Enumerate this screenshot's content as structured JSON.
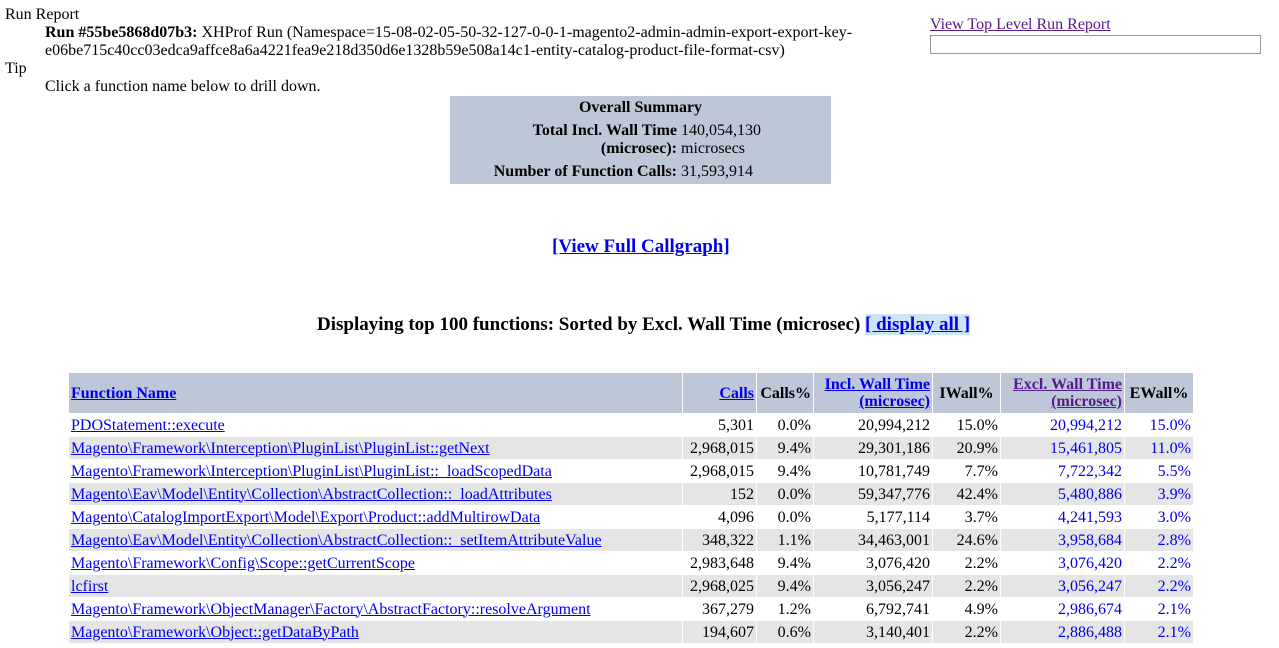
{
  "report": {
    "title": "Run Report",
    "run_label": "Run #55be5868d07b3:",
    "run_line1": "XHProf Run (Namespace=15-08-02-05-50-32-127-0-0-1-magento2-admin-admin-export-export-key-",
    "run_line2": "e06be715c40cc03edca9affce8a6a4221fea9e218d350d6e1328b59e508a14c1-entity-catalog-product-file-format-csv)",
    "tip_label": "Tip",
    "tip_text": "Click a function name below to drill down.",
    "top_level_link": "View Top Level Run Report"
  },
  "summary": {
    "heading": "Overall Summary",
    "wall_label_1": "Total Incl. Wall Time",
    "wall_label_2": "(microsec):",
    "wall_value": "140,054,130",
    "wall_unit": "microsecs",
    "calls_label": "Number of Function Calls:",
    "calls_value": "31,593,914"
  },
  "callgraph_link": "[View Full Callgraph]",
  "display": {
    "heading": "Displaying top 100 functions: Sorted by Excl. Wall Time (microsec)",
    "display_all": "[ display all ]"
  },
  "table": {
    "headers": {
      "function_name": "Function Name",
      "calls": "Calls",
      "calls_pct": "Calls%",
      "incl_wall_1": "Incl. Wall Time",
      "incl_wall_2": "(microsec)",
      "iwall_pct": "IWall%",
      "excl_wall_1": "Excl. Wall Time",
      "excl_wall_2": "(microsec)",
      "ewall_pct": "EWall%"
    },
    "rows": [
      {
        "fn": "PDOStatement::execute",
        "calls": "5,301",
        "calls_pct": "0.0%",
        "incl": "20,994,212",
        "iwall": "15.0%",
        "excl": "20,994,212",
        "ewall": "15.0%"
      },
      {
        "fn": "Magento\\Framework\\Interception\\PluginList\\PluginList::getNext",
        "calls": "2,968,015",
        "calls_pct": "9.4%",
        "incl": "29,301,186",
        "iwall": "20.9%",
        "excl": "15,461,805",
        "ewall": "11.0%"
      },
      {
        "fn": "Magento\\Framework\\Interception\\PluginList\\PluginList::_loadScopedData",
        "calls": "2,968,015",
        "calls_pct": "9.4%",
        "incl": "10,781,749",
        "iwall": "7.7%",
        "excl": "7,722,342",
        "ewall": "5.5%"
      },
      {
        "fn": "Magento\\Eav\\Model\\Entity\\Collection\\AbstractCollection::_loadAttributes",
        "calls": "152",
        "calls_pct": "0.0%",
        "incl": "59,347,776",
        "iwall": "42.4%",
        "excl": "5,480,886",
        "ewall": "3.9%"
      },
      {
        "fn": "Magento\\CatalogImportExport\\Model\\Export\\Product::addMultirowData",
        "calls": "4,096",
        "calls_pct": "0.0%",
        "incl": "5,177,114",
        "iwall": "3.7%",
        "excl": "4,241,593",
        "ewall": "3.0%"
      },
      {
        "fn": "Magento\\Eav\\Model\\Entity\\Collection\\AbstractCollection::_setItemAttributeValue",
        "calls": "348,322",
        "calls_pct": "1.1%",
        "incl": "34,463,001",
        "iwall": "24.6%",
        "excl": "3,958,684",
        "ewall": "2.8%"
      },
      {
        "fn": "Magento\\Framework\\Config\\Scope::getCurrentScope",
        "calls": "2,983,648",
        "calls_pct": "9.4%",
        "incl": "3,076,420",
        "iwall": "2.2%",
        "excl": "3,076,420",
        "ewall": "2.2%"
      },
      {
        "fn": "lcfirst",
        "calls": "2,968,025",
        "calls_pct": "9.4%",
        "incl": "3,056,247",
        "iwall": "2.2%",
        "excl": "3,056,247",
        "ewall": "2.2%"
      },
      {
        "fn": "Magento\\Framework\\ObjectManager\\Factory\\AbstractFactory::resolveArgument",
        "calls": "367,279",
        "calls_pct": "1.2%",
        "incl": "6,792,741",
        "iwall": "4.9%",
        "excl": "2,986,674",
        "ewall": "2.1%"
      },
      {
        "fn": "Magento\\Framework\\Object::getDataByPath",
        "calls": "194,607",
        "calls_pct": "0.6%",
        "incl": "3,140,401",
        "iwall": "2.2%",
        "excl": "2,886,488",
        "ewall": "2.1%"
      }
    ]
  }
}
